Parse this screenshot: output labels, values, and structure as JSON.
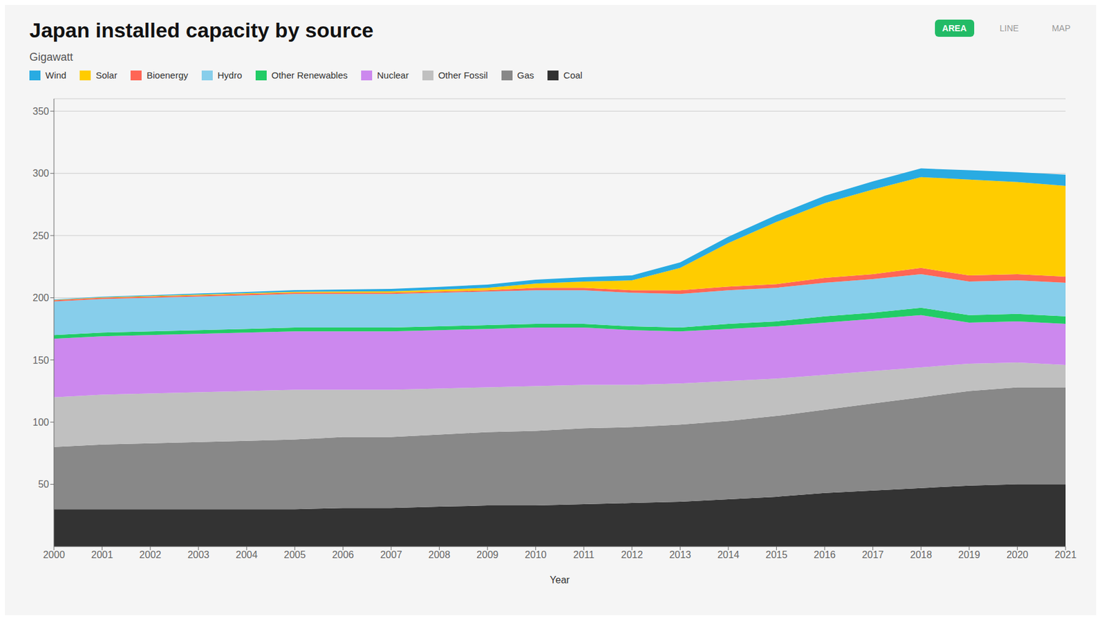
{
  "chart_data": {
    "type": "area",
    "stacked": true,
    "title": "Japan installed capacity by source",
    "subtitle": "Gigawatt",
    "xlabel": "Year",
    "annotations": [
      "AREA",
      "LINE",
      "MAP"
    ],
    "legend": "upper left",
    "grid": true,
    "x": [
      2000,
      2001,
      2002,
      2003,
      2004,
      2005,
      2006,
      2007,
      2008,
      2009,
      2010,
      2011,
      2012,
      2013,
      2014,
      2015,
      2016,
      2017,
      2018,
      2019,
      2020,
      2021
    ],
    "xlim": [
      2000,
      2021
    ],
    "xticks": [
      2000,
      2001,
      2002,
      2003,
      2004,
      2005,
      2006,
      2007,
      2008,
      2009,
      2010,
      2011,
      2012,
      2013,
      2014,
      2015,
      2016,
      2017,
      2018,
      2019,
      2020,
      2021
    ],
    "ylim": [
      0,
      360
    ],
    "yticks": [
      50,
      100,
      150,
      200,
      250,
      300,
      350
    ],
    "series": [
      {
        "name": "Coal",
        "color": "#333333",
        "values": [
          30,
          30,
          30,
          30,
          30,
          30,
          31,
          31,
          32,
          33,
          33,
          34,
          35,
          36,
          38,
          40,
          43,
          45,
          47,
          49,
          50,
          50
        ]
      },
      {
        "name": "Gas",
        "color": "#888888",
        "values": [
          50,
          52,
          53,
          54,
          55,
          56,
          57,
          57,
          58,
          59,
          60,
          61,
          61,
          62,
          63,
          65,
          67,
          70,
          73,
          76,
          78,
          78
        ]
      },
      {
        "name": "Other Fossil",
        "color": "#c0c0c0",
        "values": [
          40,
          40,
          40,
          40,
          40,
          40,
          38,
          38,
          37,
          36,
          36,
          35,
          34,
          33,
          32,
          30,
          28,
          26,
          24,
          22,
          20,
          18
        ]
      },
      {
        "name": "Nuclear",
        "color": "#cc88ee",
        "values": [
          47,
          47,
          47,
          47,
          47,
          47,
          47,
          47,
          47,
          47,
          47,
          46,
          44,
          42,
          42,
          42,
          42,
          42,
          42,
          33,
          33,
          33
        ]
      },
      {
        "name": "Other Renewables",
        "color": "#22cc66",
        "values": [
          3,
          3,
          3,
          3,
          3,
          3,
          3,
          3,
          3,
          3,
          3,
          3,
          3,
          3,
          4,
          4,
          5,
          5,
          6,
          6,
          6,
          6
        ]
      },
      {
        "name": "Hydro",
        "color": "#87ceeb",
        "values": [
          27,
          27,
          27,
          27,
          27,
          27,
          27,
          27,
          27,
          27,
          27,
          27,
          27,
          27,
          27,
          27,
          27,
          27,
          27,
          27,
          27,
          27
        ]
      },
      {
        "name": "Bioenergy",
        "color": "#ff6655",
        "values": [
          1,
          1,
          1,
          1,
          1,
          1,
          1,
          1,
          1,
          1,
          2,
          2,
          2,
          3,
          3,
          3,
          4,
          4,
          5,
          5,
          5,
          5
        ]
      },
      {
        "name": "Solar",
        "color": "#ffcc00",
        "values": [
          0.3,
          0.4,
          0.5,
          0.6,
          0.7,
          0.8,
          1.0,
          1.2,
          1.5,
          2.0,
          3.5,
          5.0,
          8.0,
          18,
          35,
          50,
          60,
          68,
          73,
          77,
          74,
          73
        ]
      },
      {
        "name": "Wind",
        "color": "#29abe2",
        "values": [
          0.3,
          0.4,
          0.6,
          0.8,
          1.0,
          1.3,
          1.6,
          1.9,
          2.2,
          2.6,
          3.0,
          3.5,
          4.0,
          4.5,
          5.0,
          5.5,
          6.0,
          6.5,
          7.0,
          7.5,
          8.0,
          9.0
        ]
      }
    ]
  }
}
